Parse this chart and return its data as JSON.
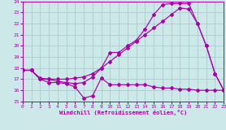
{
  "xlabel": "Windchill (Refroidissement éolien,°C)",
  "bg_color": "#cce8e8",
  "line_color": "#aa00aa",
  "grid_color": "#aacccc",
  "xlim": [
    0,
    23
  ],
  "ylim": [
    15,
    24
  ],
  "yticks": [
    15,
    16,
    17,
    18,
    19,
    20,
    21,
    22,
    23,
    24
  ],
  "xticks": [
    0,
    1,
    2,
    3,
    4,
    5,
    6,
    7,
    8,
    9,
    10,
    11,
    12,
    13,
    14,
    15,
    16,
    17,
    18,
    19,
    20,
    21,
    22,
    23
  ],
  "line1_x": [
    0,
    1,
    2,
    3,
    4,
    5,
    6,
    7,
    8,
    9,
    10,
    11,
    12,
    13,
    14,
    15,
    16,
    17,
    18,
    19,
    20,
    21,
    22,
    23
  ],
  "line1_y": [
    17.8,
    17.8,
    17.0,
    16.7,
    16.7,
    16.6,
    16.3,
    15.3,
    15.5,
    17.1,
    16.5,
    16.5,
    16.5,
    16.5,
    16.5,
    16.3,
    16.2,
    16.2,
    16.1,
    16.1,
    16.0,
    16.0,
    16.0,
    16.0
  ],
  "line2_x": [
    0,
    1,
    2,
    3,
    4,
    5,
    6,
    7,
    8,
    9,
    10,
    11,
    12,
    13,
    14,
    15,
    16,
    17,
    18,
    19,
    20,
    21,
    22,
    23
  ],
  "line2_y": [
    17.8,
    17.8,
    17.0,
    17.0,
    16.8,
    16.7,
    16.6,
    16.7,
    17.2,
    18.0,
    19.4,
    19.4,
    20.0,
    20.5,
    21.5,
    22.8,
    23.7,
    23.8,
    23.8,
    23.8,
    22.0,
    20.0,
    17.5,
    16.0
  ],
  "line3_x": [
    0,
    1,
    2,
    3,
    4,
    5,
    6,
    7,
    8,
    9,
    10,
    11,
    12,
    13,
    14,
    15,
    16,
    17,
    18,
    19,
    20,
    21,
    22,
    23
  ],
  "line3_y": [
    17.8,
    17.8,
    17.1,
    17.0,
    17.0,
    17.0,
    17.1,
    17.2,
    17.5,
    18.0,
    18.6,
    19.2,
    19.8,
    20.4,
    21.0,
    21.6,
    22.2,
    22.8,
    23.4,
    23.3,
    22.0,
    20.0,
    17.5,
    16.0
  ]
}
